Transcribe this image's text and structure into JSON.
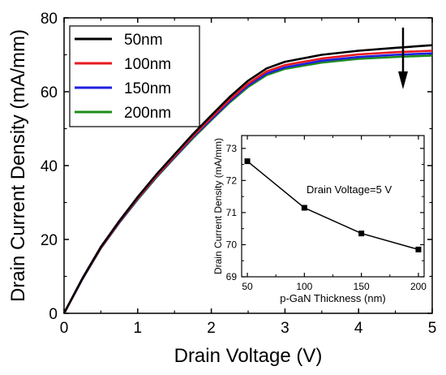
{
  "chart_data": [
    {
      "type": "line",
      "xlabel": "Drain Voltage (V)",
      "ylabel": "Drain Current Density (mA/mm)",
      "xlim": [
        0,
        5
      ],
      "ylim": [
        0,
        80
      ],
      "xticks": [
        "0",
        "1",
        "2",
        "3",
        "4",
        "5"
      ],
      "yticks": [
        "0",
        "20",
        "40",
        "60",
        "80"
      ],
      "grid": false,
      "legend_position": "top-left",
      "annotation": "downward arrow at top-right indicating decreasing current with increasing thickness",
      "x": [
        0,
        0.25,
        0.5,
        0.75,
        1.0,
        1.25,
        1.5,
        1.75,
        2.0,
        2.25,
        2.5,
        2.75,
        3.0,
        3.5,
        4.0,
        4.5,
        5.0
      ],
      "series": [
        {
          "name": "50nm",
          "color": "#000000",
          "values": [
            0,
            9.5,
            18,
            25,
            31.5,
            37.5,
            43,
            48.5,
            53.6,
            58.6,
            63,
            66.3,
            68.1,
            70,
            71.1,
            71.9,
            72.6
          ]
        },
        {
          "name": "100nm",
          "color": "#e8191f",
          "values": [
            0,
            9.4,
            17.8,
            24.8,
            31.2,
            37.1,
            42.6,
            48,
            53,
            57.9,
            62.2,
            65.5,
            67.2,
            69,
            70.1,
            70.7,
            71.1
          ]
        },
        {
          "name": "150nm",
          "color": "#1f1fe0",
          "values": [
            0,
            9.3,
            17.7,
            24.6,
            31,
            36.9,
            42.3,
            47.7,
            52.6,
            57.4,
            61.7,
            64.9,
            66.6,
            68.4,
            69.4,
            70,
            70.4
          ]
        },
        {
          "name": "200nm",
          "color": "#1c8c1c",
          "values": [
            0,
            9.3,
            17.6,
            24.5,
            30.8,
            36.7,
            42.1,
            47.4,
            52.3,
            57.1,
            61.3,
            64.5,
            66.2,
            67.9,
            68.9,
            69.4,
            69.8
          ]
        }
      ]
    },
    {
      "type": "line",
      "xlabel": "p-GaN Thickness (nm)",
      "ylabel": "Drain Current Density (mA/mm)",
      "annotation": "Drain Voltage=5 V",
      "xlim": [
        45,
        205
      ],
      "ylim": [
        69,
        73.4
      ],
      "xticks": [
        "50",
        "100",
        "150",
        "200"
      ],
      "yticks": [
        "69",
        "70",
        "71",
        "72",
        "73"
      ],
      "grid": false,
      "x": [
        50,
        100,
        150,
        200
      ],
      "series": [
        {
          "color": "#000000",
          "values": [
            72.6,
            71.15,
            70.35,
            69.85
          ]
        }
      ]
    }
  ]
}
